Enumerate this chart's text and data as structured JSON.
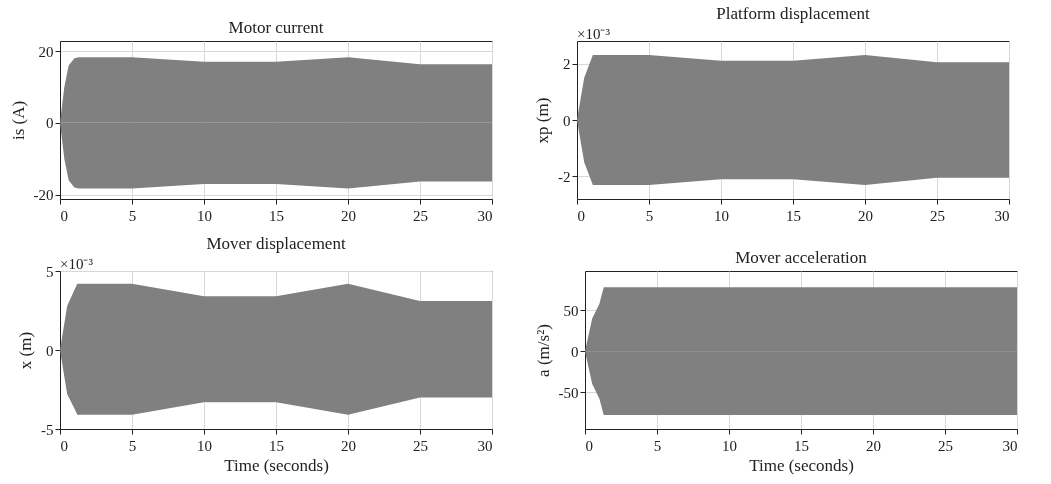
{
  "chart_data": [
    {
      "type": "area",
      "title": "Motor current",
      "ylabel": "is (A)",
      "xlim": [
        0,
        30
      ],
      "xticks": [
        0,
        5,
        10,
        15,
        20,
        25,
        30
      ],
      "ylim": [
        -21.2,
        22.8
      ],
      "yticks": [
        -20,
        0,
        20
      ],
      "grid": true,
      "series": [
        {
          "color": "#808080",
          "x": [
            0,
            0.3,
            0.6,
            1,
            1.3,
            5,
            10,
            15,
            20,
            25,
            30
          ],
          "values": [
            0,
            10,
            16,
            18,
            18.3,
            18.3,
            17,
            17,
            18.3,
            16.3,
            16.3
          ]
        },
        {
          "color": "#808080",
          "x": [
            0,
            0.3,
            0.6,
            1,
            1.3,
            5,
            10,
            15,
            20,
            25,
            30
          ],
          "values": [
            0,
            -10,
            -16,
            -18,
            -18.3,
            -18.3,
            -17,
            -17,
            -18.3,
            -16.3,
            -16.3
          ]
        }
      ]
    },
    {
      "type": "area",
      "title": "Platform displacement",
      "ylabel": "xp (m)",
      "annotations": [
        "×10⁻³"
      ],
      "xlim": [
        0,
        30
      ],
      "xticks": [
        0,
        5,
        10,
        15,
        20,
        25,
        30
      ],
      "ylim": [
        -2.8,
        2.8
      ],
      "yticks": [
        -2,
        0,
        2
      ],
      "grid": true,
      "series": [
        {
          "color": "#808080",
          "x": [
            0,
            0.5,
            1.1,
            5,
            10,
            15,
            20,
            25,
            30
          ],
          "values": [
            0,
            1.5,
            2.3,
            2.3,
            2.1,
            2.1,
            2.3,
            2.05,
            2.05
          ]
        },
        {
          "color": "#808080",
          "x": [
            0,
            0.5,
            1.1,
            5,
            10,
            15,
            20,
            25,
            30
          ],
          "values": [
            0,
            -1.5,
            -2.3,
            -2.3,
            -2.1,
            -2.1,
            -2.3,
            -2.05,
            -2.05
          ]
        }
      ]
    },
    {
      "type": "area",
      "title": "Mover displacement",
      "xlabel": "Time (seconds)",
      "ylabel": "x (m)",
      "annotations": [
        "×10⁻³"
      ],
      "xlim": [
        0,
        30
      ],
      "xticks": [
        0,
        5,
        10,
        15,
        20,
        25,
        30
      ],
      "ylim": [
        -5,
        5
      ],
      "yticks": [
        -5,
        0,
        5
      ],
      "grid": true,
      "series": [
        {
          "color": "#808080",
          "x": [
            0,
            0.5,
            1,
            1.2,
            5,
            10,
            15,
            20,
            25,
            30
          ],
          "values": [
            0,
            2.8,
            3.8,
            4.2,
            4.2,
            3.4,
            3.4,
            4.2,
            3.1,
            3.1
          ]
        },
        {
          "color": "#808080",
          "x": [
            0,
            0.5,
            1,
            1.2,
            5,
            10,
            15,
            20,
            25,
            30
          ],
          "values": [
            0,
            -2.8,
            -3.7,
            -4.1,
            -4.1,
            -3.3,
            -3.3,
            -4.1,
            -3.0,
            -3.0
          ]
        }
      ]
    },
    {
      "type": "area",
      "title": "Mover acceleration",
      "xlabel": "Time (seconds)",
      "ylabel": "a (m/s²)",
      "xlim": [
        0,
        30
      ],
      "xticks": [
        0,
        5,
        10,
        15,
        20,
        25,
        30
      ],
      "ylim": [
        -95,
        98
      ],
      "yticks": [
        -50,
        0,
        50
      ],
      "grid": true,
      "series": [
        {
          "color": "#808080",
          "x": [
            0,
            0.5,
            1,
            1.3,
            5,
            10,
            15,
            20,
            25,
            30
          ],
          "values": [
            0,
            40,
            58,
            78,
            78,
            78,
            78,
            78,
            78,
            78
          ]
        },
        {
          "color": "#808080",
          "x": [
            0,
            0.5,
            1,
            1.3,
            5,
            10,
            15,
            20,
            25,
            30
          ],
          "values": [
            0,
            -40,
            -58,
            -78,
            -78,
            -78,
            -78,
            -78,
            -78,
            -78
          ]
        }
      ]
    }
  ]
}
